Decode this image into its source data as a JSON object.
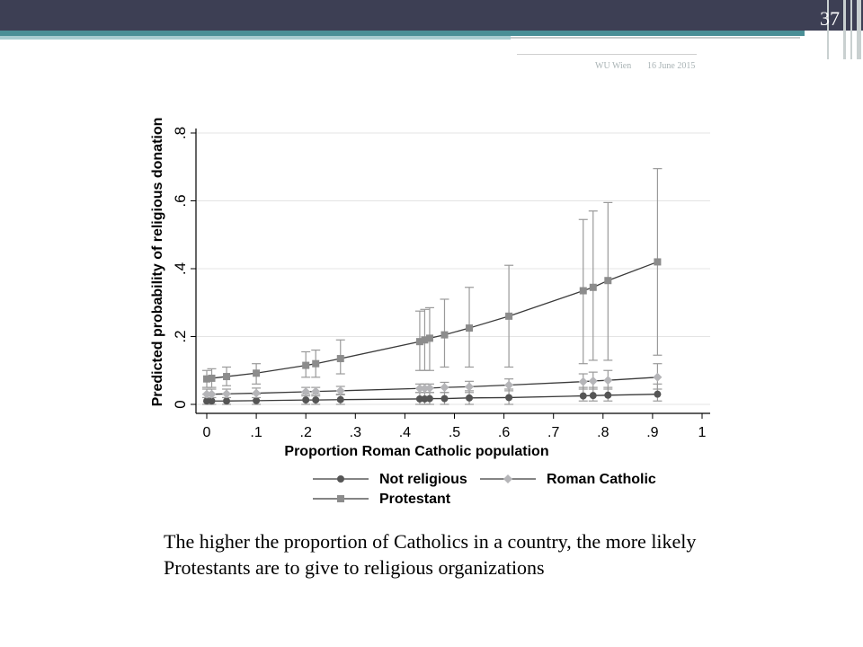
{
  "slide": {
    "number": "37",
    "footer_left": "WU Wien",
    "footer_right": "16 June 2015",
    "caption": "The higher the proportion of Catholics in a country, the more likely Protestants are to give to religious organizations"
  },
  "chart_data": {
    "type": "line",
    "title": "",
    "xlabel": "Proportion Roman Catholic population",
    "ylabel": "Predicted probability of religious donation",
    "xlim": [
      0,
      1
    ],
    "ylim": [
      0,
      0.8
    ],
    "xticks": [
      0,
      0.1,
      0.2,
      0.3,
      0.4,
      0.5,
      0.6,
      0.7,
      0.8,
      0.9,
      1
    ],
    "xtick_labels": [
      "0",
      ".1",
      ".2",
      ".3",
      ".4",
      ".5",
      ".6",
      ".7",
      ".8",
      ".9",
      "1"
    ],
    "yticks": [
      0,
      0.2,
      0.4,
      0.6,
      0.8
    ],
    "ytick_labels": [
      "0",
      ".2",
      ".4",
      ".6",
      ".8"
    ],
    "legend": [
      "Not religious",
      "Roman Catholic",
      "Protestant"
    ],
    "legend_position": "bottom",
    "grid": true,
    "colors": {
      "not_religious": "#555555",
      "roman_catholic": "#b5b5b8",
      "protestant": "#8c8c8c",
      "line": "#3a3a3a",
      "ci": "#9a9a9a"
    },
    "series": [
      {
        "name": "Not religious",
        "marker": "circle",
        "x": [
          0,
          0.01,
          0.04,
          0.1,
          0.2,
          0.22,
          0.27,
          0.43,
          0.44,
          0.45,
          0.48,
          0.53,
          0.61,
          0.76,
          0.78,
          0.81,
          0.91
        ],
        "y": [
          0.01,
          0.01,
          0.01,
          0.011,
          0.013,
          0.013,
          0.014,
          0.016,
          0.016,
          0.017,
          0.017,
          0.019,
          0.02,
          0.025,
          0.026,
          0.027,
          0.03
        ],
        "ci_low": [
          0.0,
          0.0,
          0.0,
          0.0,
          0.0,
          0.0,
          0.0,
          0.0,
          0.0,
          0.0,
          0.0,
          0.0,
          0.0,
          0.01,
          0.01,
          0.01,
          0.01
        ],
        "ci_high": [
          0.03,
          0.03,
          0.03,
          0.03,
          0.03,
          0.03,
          0.03,
          0.035,
          0.035,
          0.035,
          0.035,
          0.04,
          0.045,
          0.05,
          0.05,
          0.05,
          0.06
        ]
      },
      {
        "name": "Roman Catholic",
        "marker": "diamond",
        "x": [
          0,
          0.01,
          0.04,
          0.1,
          0.2,
          0.22,
          0.27,
          0.43,
          0.44,
          0.45,
          0.48,
          0.53,
          0.61,
          0.76,
          0.78,
          0.81,
          0.91
        ],
        "y": [
          0.03,
          0.03,
          0.031,
          0.033,
          0.037,
          0.038,
          0.04,
          0.047,
          0.047,
          0.048,
          0.05,
          0.052,
          0.057,
          0.067,
          0.069,
          0.071,
          0.08
        ],
        "ci_low": [
          0.02,
          0.02,
          0.02,
          0.02,
          0.025,
          0.025,
          0.028,
          0.035,
          0.035,
          0.035,
          0.035,
          0.035,
          0.04,
          0.045,
          0.045,
          0.045,
          0.045
        ],
        "ci_high": [
          0.045,
          0.045,
          0.045,
          0.048,
          0.05,
          0.05,
          0.053,
          0.06,
          0.06,
          0.06,
          0.065,
          0.068,
          0.075,
          0.09,
          0.095,
          0.1,
          0.12
        ]
      },
      {
        "name": "Protestant",
        "marker": "square",
        "x": [
          0,
          0.01,
          0.04,
          0.1,
          0.2,
          0.22,
          0.27,
          0.43,
          0.44,
          0.45,
          0.48,
          0.53,
          0.61,
          0.76,
          0.78,
          0.81,
          0.91
        ],
        "y": [
          0.075,
          0.077,
          0.082,
          0.092,
          0.115,
          0.12,
          0.135,
          0.185,
          0.19,
          0.195,
          0.205,
          0.225,
          0.26,
          0.335,
          0.345,
          0.365,
          0.42
        ],
        "ci_low": [
          0.05,
          0.05,
          0.055,
          0.06,
          0.08,
          0.08,
          0.09,
          0.1,
          0.1,
          0.1,
          0.11,
          0.11,
          0.11,
          0.12,
          0.13,
          0.13,
          0.145
        ],
        "ci_high": [
          0.1,
          0.105,
          0.11,
          0.12,
          0.155,
          0.16,
          0.19,
          0.275,
          0.28,
          0.285,
          0.31,
          0.345,
          0.41,
          0.545,
          0.57,
          0.595,
          0.695
        ]
      }
    ]
  }
}
